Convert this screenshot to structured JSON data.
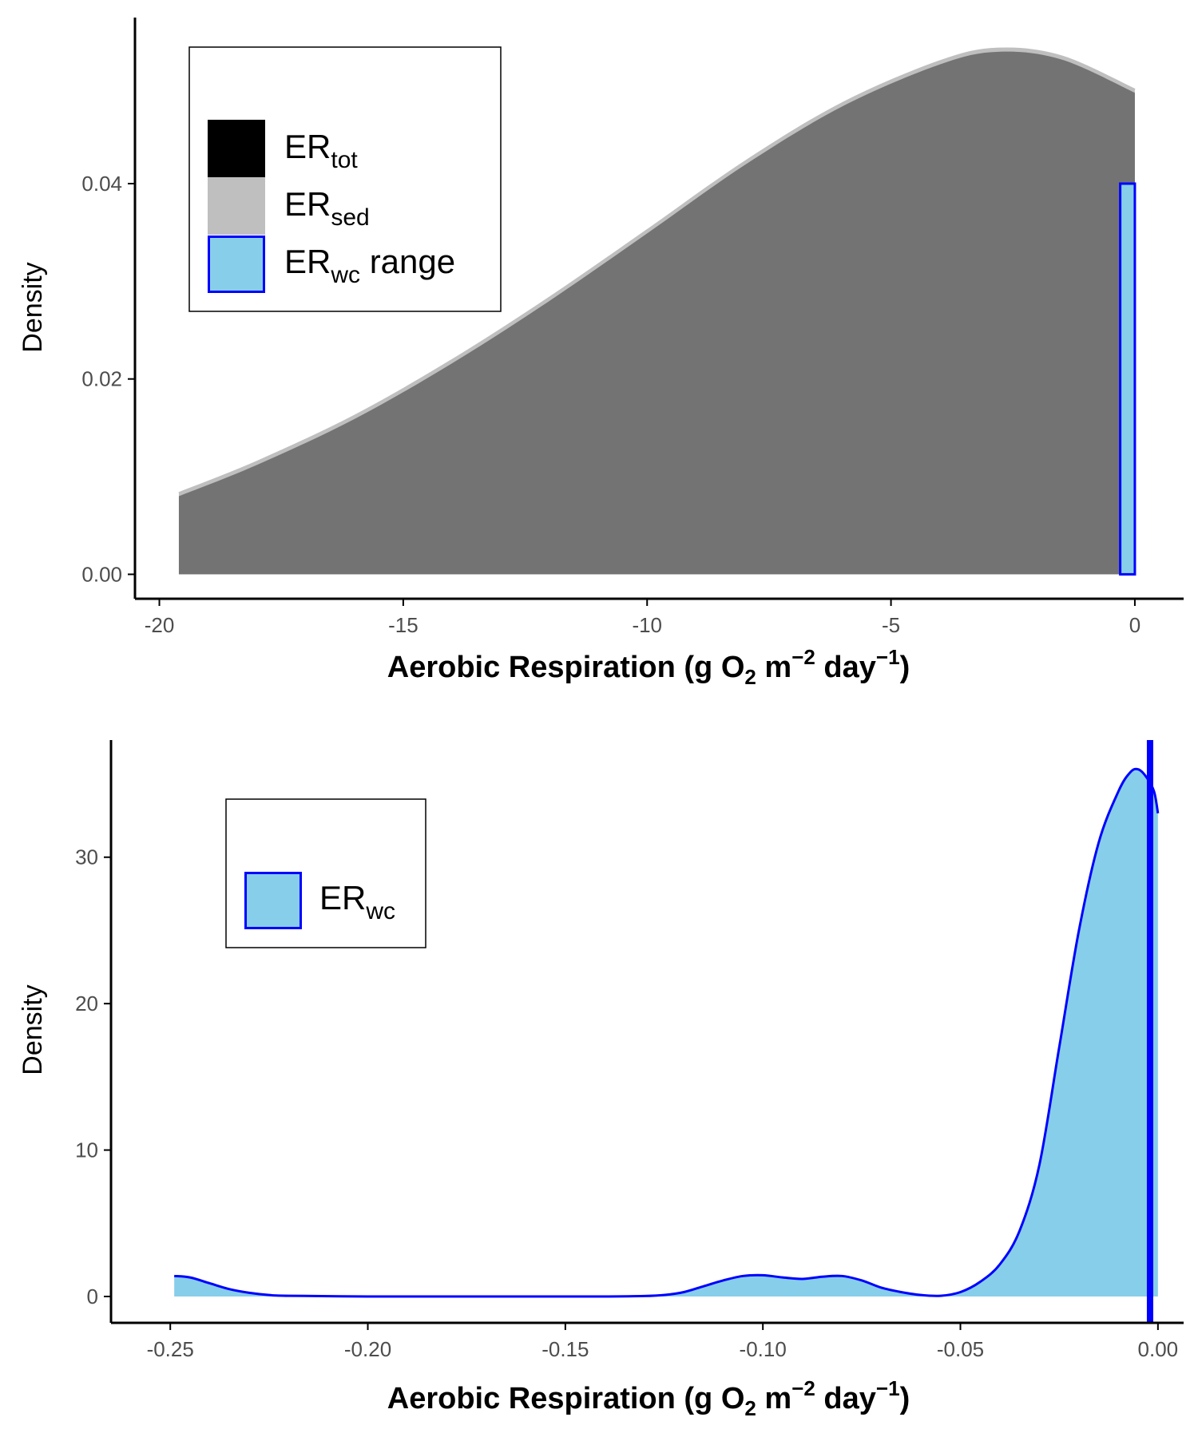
{
  "colors": {
    "total_fill": "#000000",
    "sed_fill": "#bfbfbf",
    "overlap_fill": "#737373",
    "wc_fill": "#87ceeb",
    "wc_line": "#0000ff",
    "axis": "#000000",
    "tick_text": "#4d4d4d"
  },
  "charts": [
    {
      "xlabel": {
        "pre": "Aerobic Respiration (g O",
        "sub": "2",
        "mid": " m",
        "sup1": "−2",
        "mid2": " day",
        "sup2": "−1",
        "post": ")"
      },
      "ylabel": "Density",
      "legend": {
        "items": [
          {
            "main": "ER",
            "sub": "tot",
            "suffix": ""
          },
          {
            "main": "ER",
            "sub": "sed",
            "suffix": ""
          },
          {
            "main": "ER",
            "sub": "wc",
            "suffix": " range"
          }
        ]
      }
    },
    {
      "xlabel": {
        "pre": "Aerobic Respiration (g O",
        "sub": "2",
        "mid": " m",
        "sup1": "−2",
        "mid2": " day",
        "sup2": "−1",
        "post": ")"
      },
      "ylabel": "Density",
      "legend": {
        "items": [
          {
            "main": "ER",
            "sub": "wc",
            "suffix": ""
          }
        ]
      }
    }
  ],
  "chart_data": [
    {
      "type": "area",
      "series": [
        {
          "name": "ER_tot",
          "x": [
            -19.6,
            -18,
            -16,
            -14,
            -12,
            -10,
            -8,
            -6,
            -4,
            -2.8,
            -1.5,
            0
          ],
          "y": [
            0.0083,
            0.0115,
            0.0162,
            0.0219,
            0.0283,
            0.0352,
            0.0422,
            0.0482,
            0.0525,
            0.0538,
            0.053,
            0.0496
          ]
        },
        {
          "name": "ER_sed",
          "x": [
            -19.6,
            -18,
            -16,
            -14,
            -12,
            -10,
            -8,
            -6,
            -4,
            -2.8,
            -1.5,
            0
          ],
          "y": [
            0.008,
            0.0112,
            0.0159,
            0.0216,
            0.028,
            0.0349,
            0.0419,
            0.0479,
            0.0522,
            0.0535,
            0.0527,
            0.0493
          ]
        },
        {
          "name": "ER_wc range",
          "type": "rect",
          "xmin": -0.3,
          "xmax": 0,
          "ymin": 0,
          "ymax": 0.04
        }
      ],
      "xlim": [
        -20.5,
        1
      ],
      "ylim": [
        -0.0025,
        0.057
      ],
      "xticks": [
        -20,
        -15,
        -10,
        -5,
        0
      ],
      "yticks": [
        0,
        0.02,
        0.04
      ],
      "xtick_labels": [
        "-20",
        "-15",
        "-10",
        "-5",
        "0"
      ],
      "ytick_labels": [
        "0.00",
        "0.02",
        "0.04"
      ],
      "grid": false,
      "legend_position": "top-left"
    },
    {
      "type": "area",
      "series": [
        {
          "name": "ER_wc",
          "x": [
            -0.249,
            -0.245,
            -0.24,
            -0.235,
            -0.23,
            -0.225,
            -0.22,
            -0.2,
            -0.18,
            -0.16,
            -0.14,
            -0.13,
            -0.125,
            -0.12,
            -0.115,
            -0.11,
            -0.105,
            -0.1,
            -0.095,
            -0.09,
            -0.085,
            -0.08,
            -0.075,
            -0.07,
            -0.065,
            -0.06,
            -0.055,
            -0.05,
            -0.045,
            -0.04,
            -0.035,
            -0.03,
            -0.025,
            -0.02,
            -0.015,
            -0.01,
            -0.007,
            -0.005,
            -0.003,
            -0.001,
            0.0
          ],
          "y": [
            1.4,
            1.3,
            0.9,
            0.5,
            0.25,
            0.1,
            0.05,
            0.0,
            0.0,
            0.0,
            0.0,
            0.03,
            0.1,
            0.3,
            0.7,
            1.1,
            1.4,
            1.45,
            1.3,
            1.2,
            1.35,
            1.4,
            1.1,
            0.6,
            0.3,
            0.1,
            0.05,
            0.3,
            1.0,
            2.2,
            4.5,
            9.0,
            17.0,
            25.0,
            31.0,
            34.5,
            35.8,
            36.0,
            35.5,
            34.5,
            33.0
          ]
        },
        {
          "name": "median",
          "type": "vline",
          "x": -0.002
        }
      ],
      "xlim": [
        -0.265,
        0.0065
      ],
      "ylim": [
        -1.8,
        38
      ],
      "xticks": [
        -0.25,
        -0.2,
        -0.15,
        -0.1,
        -0.05,
        0.0
      ],
      "yticks": [
        0,
        10,
        20,
        30
      ],
      "xtick_labels": [
        "-0.25",
        "-0.20",
        "-0.15",
        "-0.10",
        "-0.05",
        "0.00"
      ],
      "ytick_labels": [
        "0",
        "10",
        "20",
        "30"
      ],
      "grid": false,
      "legend_position": "top-left"
    }
  ]
}
